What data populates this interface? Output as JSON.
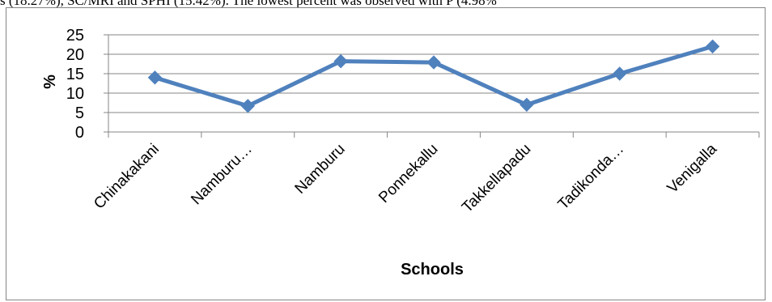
{
  "page": {
    "top_text": "s (18.27%), SC/MRI and SPHI (15.42%). The lowest percent was observed with P (4.98%"
  },
  "chart_data": {
    "type": "line",
    "title": "",
    "xlabel": "Schools",
    "ylabel": "%",
    "ylim": [
      0,
      25
    ],
    "yticks": [
      0,
      5,
      10,
      15,
      20,
      25
    ],
    "grid": true,
    "legend": "none",
    "categories": [
      "Chinakakani",
      "Namburu…",
      "Namburu",
      "Ponnekallu",
      "Takkellapadu",
      "Tadikonda…",
      "Venigalla"
    ],
    "series": [
      {
        "values": [
          14,
          6.7,
          18.2,
          17.9,
          7,
          15,
          22
        ],
        "color": "#4f81bd"
      }
    ]
  }
}
